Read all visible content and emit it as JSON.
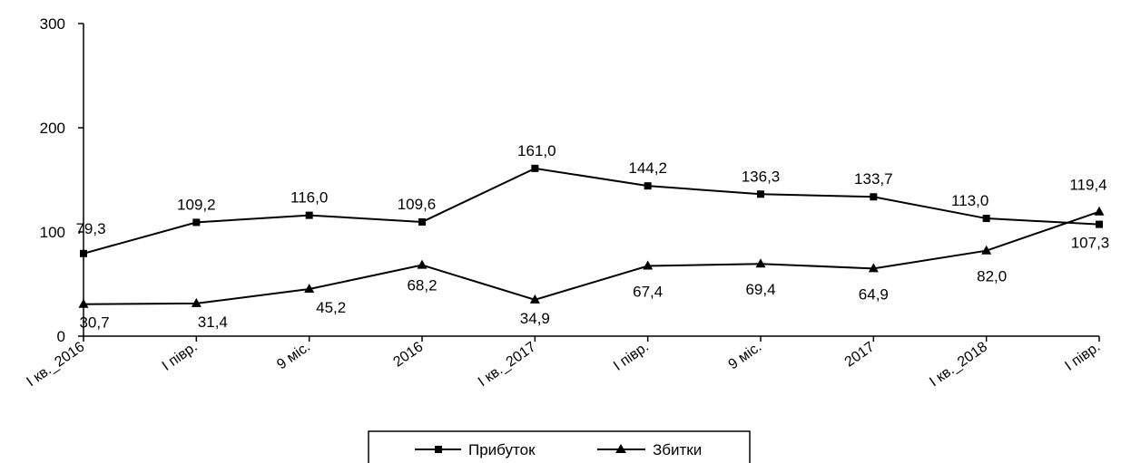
{
  "chart_data": {
    "type": "line",
    "title": "",
    "xlabel": "",
    "ylabel": "",
    "ylim": [
      0,
      300
    ],
    "yticks": [
      0,
      100,
      200,
      300
    ],
    "grid": false,
    "legend_position": "bottom",
    "categories": [
      "I кв._2016",
      "I півр.",
      "9 міс.",
      "2016",
      "I кв._2017",
      "I півр.",
      "9 міс.",
      "2017",
      "I кв._2018",
      "I півр."
    ],
    "series": [
      {
        "name": "Прибуток",
        "marker": "square",
        "color": "#000000",
        "values": [
          79.3,
          109.2,
          116.0,
          109.6,
          161.0,
          144.2,
          136.3,
          133.7,
          113.0,
          107.3
        ],
        "labels": [
          "79,3",
          "109,2",
          "116,0",
          "109,6",
          "161,0",
          "144,2",
          "136,3",
          "133,7",
          "113,0",
          "107,3"
        ]
      },
      {
        "name": "Збитки",
        "marker": "triangle",
        "color": "#000000",
        "values": [
          30.7,
          31.4,
          45.2,
          68.2,
          34.9,
          67.4,
          69.4,
          64.9,
          82.0,
          119.4
        ],
        "labels": [
          "30,7",
          "31,4",
          "45,2",
          "68,2",
          "34,9",
          "67,4",
          "69,4",
          "64,9",
          "82,0",
          "119,4"
        ]
      }
    ]
  }
}
